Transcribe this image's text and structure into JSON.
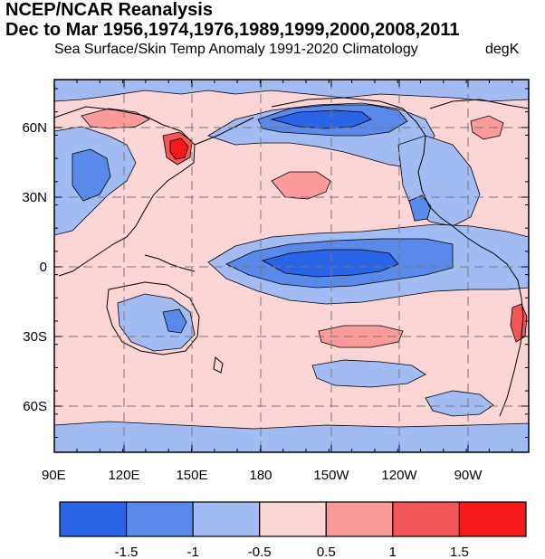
{
  "title": {
    "line1": "NCEP/NCAR Reanalysis",
    "line2": "Dec to Mar 1956,1974,1976,1989,1999,2000,2008,2011"
  },
  "subtitle": {
    "left": "Sea Surface/Skin Temp Anomaly  1991-2020 Climatology",
    "right": "degK"
  },
  "map": {
    "lat_labels": [
      "60N",
      "30N",
      "0",
      "30S",
      "60S"
    ],
    "lon_labels": [
      "90E",
      "120E",
      "150E",
      "180",
      "150W",
      "120W",
      "90W"
    ],
    "lat_range": [
      -80,
      80
    ],
    "lon_range": [
      "90E",
      "60W"
    ],
    "grid": "dashed"
  },
  "colorbar": {
    "labels": [
      "-1.5",
      "-1",
      "-0.5",
      "0.5",
      "1",
      "1.5"
    ],
    "colors": [
      "#2a64e6",
      "#5a8ae9",
      "#a2bcf3",
      "#fbd5d5",
      "#fa9a9a",
      "#f35656",
      "#f51919"
    ]
  }
}
